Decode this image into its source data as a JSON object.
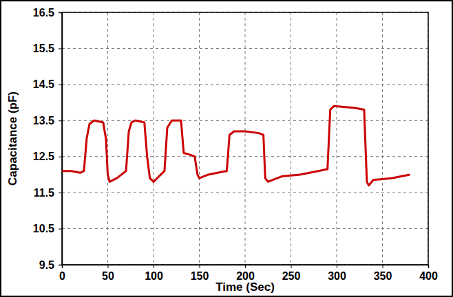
{
  "chart_data": {
    "type": "line",
    "x_label": "Time (Sec)",
    "y_label": "Capacitance (pF)",
    "x": [
      0,
      10,
      20,
      24,
      27,
      30,
      35,
      45,
      48,
      50,
      52,
      60,
      65,
      70,
      73,
      76,
      80,
      90,
      93,
      96,
      100,
      108,
      112,
      115,
      120,
      130,
      133,
      140,
      145,
      148,
      150,
      160,
      170,
      180,
      183,
      188,
      200,
      215,
      220,
      222,
      225,
      240,
      260,
      280,
      290,
      293,
      297,
      320,
      330,
      333,
      335,
      340,
      360,
      380
    ],
    "series": [
      {
        "color": "#cc0000",
        "line_style": "solid",
        "values": [
          12.1,
          12.1,
          12.05,
          12.1,
          13.0,
          13.4,
          13.5,
          13.45,
          13.0,
          12.0,
          11.8,
          11.9,
          12.0,
          12.1,
          13.2,
          13.45,
          13.5,
          13.45,
          12.5,
          11.9,
          11.8,
          12.0,
          12.1,
          13.3,
          13.5,
          13.5,
          12.6,
          12.55,
          12.5,
          12.0,
          11.9,
          12.0,
          12.05,
          12.1,
          13.1,
          13.2,
          13.2,
          13.15,
          13.1,
          11.9,
          11.8,
          11.95,
          12.0,
          12.1,
          12.15,
          13.8,
          13.9,
          13.85,
          13.8,
          11.8,
          11.7,
          11.85,
          11.9,
          12.0
        ]
      }
    ],
    "xlim": [
      0,
      400
    ],
    "xticks": [
      0,
      50,
      100,
      150,
      200,
      250,
      300,
      350,
      400
    ],
    "ylim": [
      9.5,
      16.5
    ],
    "yticks": [
      9.5,
      10.5,
      11.5,
      12.5,
      13.5,
      14.5,
      15.5,
      16.5
    ],
    "grid": true
  }
}
